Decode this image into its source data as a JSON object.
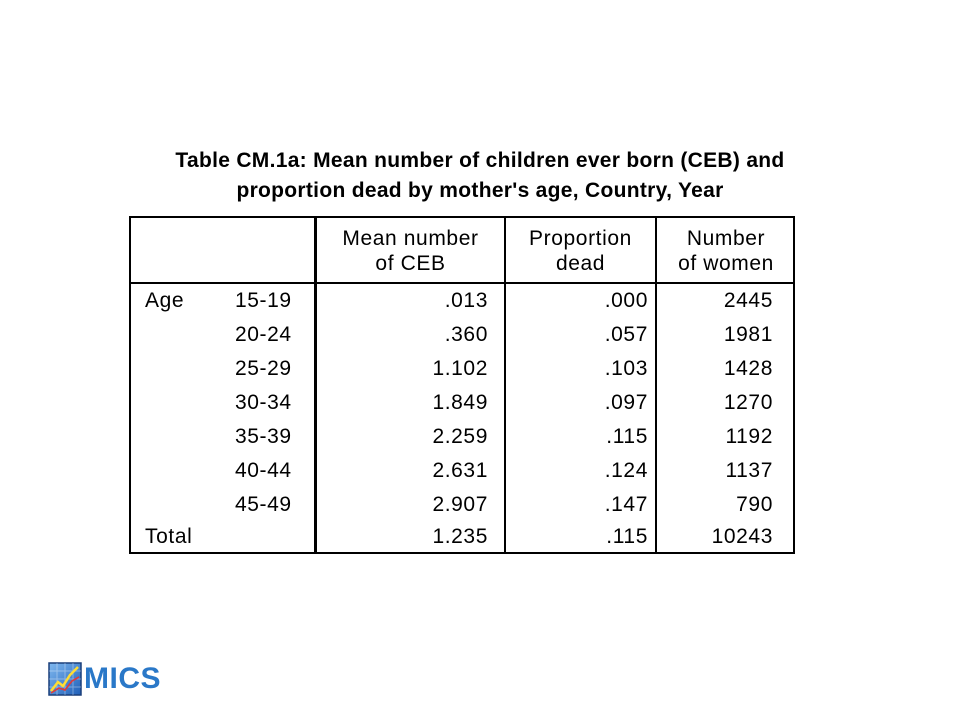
{
  "title": {
    "line1": "Table CM.1a: Mean number of children ever born (CEB) and",
    "line2": "proportion dead by mother's age, Country, Year"
  },
  "table": {
    "headers": {
      "mean_ceb": [
        "Mean number",
        "of CEB"
      ],
      "proportion_dead": [
        "Proportion",
        "dead"
      ],
      "number_women": [
        "Number",
        "of women"
      ]
    },
    "rows": [
      {
        "group": "Age",
        "age": "15-19",
        "mean_ceb": ".013",
        "proportion_dead": ".000",
        "number_women": "2445"
      },
      {
        "group": "",
        "age": "20-24",
        "mean_ceb": ".360",
        "proportion_dead": ".057",
        "number_women": "1981"
      },
      {
        "group": "",
        "age": "25-29",
        "mean_ceb": "1.102",
        "proportion_dead": ".103",
        "number_women": "1428"
      },
      {
        "group": "",
        "age": "30-34",
        "mean_ceb": "1.849",
        "proportion_dead": ".097",
        "number_women": "1270"
      },
      {
        "group": "",
        "age": "35-39",
        "mean_ceb": "2.259",
        "proportion_dead": ".115",
        "number_women": "1192"
      },
      {
        "group": "",
        "age": "40-44",
        "mean_ceb": "2.631",
        "proportion_dead": ".124",
        "number_women": "1137"
      },
      {
        "group": "",
        "age": "45-49",
        "mean_ceb": "2.907",
        "proportion_dead": ".147",
        "number_women": "790"
      },
      {
        "group": "Total",
        "age": "",
        "mean_ceb": "1.235",
        "proportion_dead": ".115",
        "number_women": "10243"
      }
    ]
  },
  "logo": {
    "text": "MICS",
    "color": "#2a78c8",
    "icon": "mics-chart-icon"
  }
}
